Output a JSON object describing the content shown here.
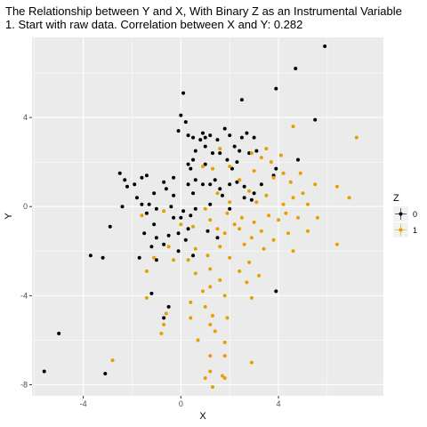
{
  "chart_data": {
    "type": "scatter",
    "title": "The Relationship between Y and X, With Binary Z as an Instrumental Variable",
    "subtitle": "1. Start with raw data. Correlation between X and Y: 0.282",
    "xlabel": "X",
    "ylabel": "Y",
    "xlim": [
      -6.1,
      8.3
    ],
    "ylim": [
      -8.5,
      7.6
    ],
    "x_ticks": [
      -4,
      0,
      4
    ],
    "y_ticks": [
      -8,
      -4,
      0,
      4
    ],
    "x_tick_labels": [
      "-4",
      "0",
      "4"
    ],
    "y_tick_labels": [
      "-8",
      "-4",
      "0",
      "4"
    ],
    "grid": true,
    "legend": {
      "title": "Z",
      "position": "right",
      "entries": [
        "0",
        "1"
      ]
    },
    "series": [
      {
        "name": "0",
        "color": "#000000",
        "points": [
          [
            5.9,
            7.2
          ],
          [
            4.7,
            6.2
          ],
          [
            3.9,
            5.3
          ],
          [
            0.1,
            5.1
          ],
          [
            2.5,
            4.8
          ],
          [
            5.5,
            3.9
          ],
          [
            0.0,
            4.1
          ],
          [
            0.2,
            3.8
          ],
          [
            -0.1,
            3.4
          ],
          [
            0.3,
            3.2
          ],
          [
            0.5,
            3.1
          ],
          [
            0.8,
            3.0
          ],
          [
            0.9,
            3.3
          ],
          [
            1.0,
            3.1
          ],
          [
            1.2,
            3.2
          ],
          [
            1.5,
            3.0
          ],
          [
            1.8,
            3.5
          ],
          [
            2.0,
            3.2
          ],
          [
            2.2,
            2.7
          ],
          [
            2.5,
            3.1
          ],
          [
            2.7,
            3.3
          ],
          [
            3.0,
            3.1
          ],
          [
            0.6,
            2.5
          ],
          [
            1.0,
            2.7
          ],
          [
            1.3,
            2.4
          ],
          [
            2.4,
            2.5
          ],
          [
            2.8,
            2.4
          ],
          [
            3.1,
            2.5
          ],
          [
            0.5,
            2.1
          ],
          [
            1.6,
            2.4
          ],
          [
            1.9,
            2.1
          ],
          [
            2.3,
            2.0
          ],
          [
            4.8,
            2.1
          ],
          [
            0.3,
            1.9
          ],
          [
            0.4,
            1.7
          ],
          [
            1.0,
            1.9
          ],
          [
            2.1,
            1.7
          ],
          [
            3.9,
            1.7
          ],
          [
            -2.5,
            1.5
          ],
          [
            -2.3,
            1.2
          ],
          [
            -1.6,
            1.3
          ],
          [
            -1.4,
            1.4
          ],
          [
            -2.2,
            0.9
          ],
          [
            -1.9,
            1.0
          ],
          [
            -0.7,
            1.1
          ],
          [
            -0.3,
            1.3
          ],
          [
            0.3,
            1.0
          ],
          [
            0.6,
            1.2
          ],
          [
            0.9,
            1.0
          ],
          [
            1.2,
            1.0
          ],
          [
            1.4,
            1.2
          ],
          [
            1.6,
            0.8
          ],
          [
            2.0,
            1.0
          ],
          [
            2.3,
            1.1
          ],
          [
            2.6,
            0.9
          ],
          [
            3.3,
            1.0
          ],
          [
            3.8,
            1.4
          ],
          [
            -1.8,
            0.4
          ],
          [
            -1.1,
            0.6
          ],
          [
            -0.6,
            0.8
          ],
          [
            -0.3,
            0.5
          ],
          [
            0.5,
            0.6
          ],
          [
            1.7,
            0.5
          ],
          [
            2.6,
            0.4
          ],
          [
            3.0,
            0.6
          ],
          [
            -2.4,
            0.0
          ],
          [
            -1.6,
            0.1
          ],
          [
            -1.3,
            0.1
          ],
          [
            -1.4,
            -0.3
          ],
          [
            -1.0,
            -0.1
          ],
          [
            -0.4,
            0.0
          ],
          [
            0.1,
            -0.2
          ],
          [
            0.6,
            -0.1
          ],
          [
            1.2,
            0.1
          ],
          [
            2.0,
            -0.1
          ],
          [
            2.9,
            0.3
          ],
          [
            -1.1,
            -0.8
          ],
          [
            -0.3,
            -0.5
          ],
          [
            0.0,
            -0.5
          ],
          [
            0.4,
            -0.4
          ],
          [
            -2.9,
            -0.9
          ],
          [
            -1.5,
            -1.2
          ],
          [
            -1.0,
            -1.4
          ],
          [
            -0.5,
            -1.3
          ],
          [
            -0.1,
            -1.2
          ],
          [
            0.3,
            -1.0
          ],
          [
            1.1,
            -1.1
          ],
          [
            1.5,
            -1.4
          ],
          [
            -1.2,
            -1.8
          ],
          [
            -0.7,
            -1.7
          ],
          [
            0.2,
            -1.5
          ],
          [
            0.5,
            -2.2
          ],
          [
            -1.7,
            -2.3
          ],
          [
            -1.0,
            -2.4
          ],
          [
            -0.1,
            -2.0
          ],
          [
            -3.7,
            -2.2
          ],
          [
            -3.2,
            -2.3
          ],
          [
            -1.2,
            -3.9
          ],
          [
            -0.5,
            -4.5
          ],
          [
            -0.7,
            -5.0
          ],
          [
            3.9,
            -3.8
          ],
          [
            -5.0,
            -5.7
          ],
          [
            -5.6,
            -7.4
          ],
          [
            -3.1,
            -7.5
          ]
        ]
      },
      {
        "name": "1",
        "color": "#e69f00",
        "points": [
          [
            4.6,
            3.6
          ],
          [
            7.2,
            3.1
          ],
          [
            3.5,
            2.6
          ],
          [
            4.1,
            2.3
          ],
          [
            3.7,
            2.0
          ],
          [
            1.6,
            2.6
          ],
          [
            2.9,
            2.4
          ],
          [
            3.3,
            2.2
          ],
          [
            0.9,
            1.8
          ],
          [
            1.3,
            1.7
          ],
          [
            2.0,
            1.8
          ],
          [
            4.2,
            1.5
          ],
          [
            3.0,
            1.6
          ],
          [
            4.9,
            1.5
          ],
          [
            2.4,
            1.2
          ],
          [
            3.8,
            1.3
          ],
          [
            4.5,
            1.1
          ],
          [
            5.5,
            1.0
          ],
          [
            6.4,
            0.9
          ],
          [
            1.5,
            0.6
          ],
          [
            2.8,
            0.7
          ],
          [
            3.5,
            0.5
          ],
          [
            4.6,
            0.4
          ],
          [
            5.0,
            0.6
          ],
          [
            6.9,
            0.4
          ],
          [
            2.0,
            0.2
          ],
          [
            3.1,
            0.2
          ],
          [
            4.2,
            0.1
          ],
          [
            5.2,
            0.1
          ],
          [
            1.0,
            -0.1
          ],
          [
            1.9,
            -0.3
          ],
          [
            2.5,
            -0.5
          ],
          [
            3.6,
            -0.4
          ],
          [
            4.3,
            -0.3
          ],
          [
            1.2,
            -0.6
          ],
          [
            2.2,
            -0.8
          ],
          [
            3.0,
            -0.7
          ],
          [
            4.0,
            -0.6
          ],
          [
            4.8,
            -0.5
          ],
          [
            5.6,
            -0.5
          ],
          [
            0.5,
            -0.9
          ],
          [
            1.5,
            -1.0
          ],
          [
            2.4,
            -1.0
          ],
          [
            3.3,
            -1.1
          ],
          [
            4.4,
            -1.2
          ],
          [
            5.2,
            -1.1
          ],
          [
            -1.6,
            -0.4
          ],
          [
            -0.7,
            -0.2
          ],
          [
            0.0,
            -0.8
          ],
          [
            1.8,
            -1.2
          ],
          [
            2.9,
            -1.4
          ],
          [
            3.8,
            -1.5
          ],
          [
            -0.5,
            -1.8
          ],
          [
            0.6,
            -1.9
          ],
          [
            1.6,
            -1.8
          ],
          [
            2.6,
            -1.7
          ],
          [
            3.4,
            -1.9
          ],
          [
            4.6,
            -2.0
          ],
          [
            6.4,
            -1.7
          ],
          [
            -1.1,
            -2.3
          ],
          [
            -0.3,
            -2.4
          ],
          [
            0.3,
            -2.4
          ],
          [
            1.1,
            -2.2
          ],
          [
            2.0,
            -2.3
          ],
          [
            2.8,
            -2.5
          ],
          [
            -1.4,
            -2.9
          ],
          [
            0.6,
            -3.0
          ],
          [
            1.2,
            -2.8
          ],
          [
            2.4,
            -2.9
          ],
          [
            3.2,
            -3.1
          ],
          [
            1.6,
            -3.3
          ],
          [
            2.7,
            -3.4
          ],
          [
            0.9,
            -3.8
          ],
          [
            1.2,
            -3.6
          ],
          [
            1.8,
            -4.0
          ],
          [
            2.9,
            -4.1
          ],
          [
            -1.4,
            -4.1
          ],
          [
            0.4,
            -4.3
          ],
          [
            1.0,
            -4.5
          ],
          [
            -0.6,
            -4.8
          ],
          [
            0.4,
            -5.0
          ],
          [
            1.3,
            -4.9
          ],
          [
            1.9,
            -5.0
          ],
          [
            -0.7,
            -5.3
          ],
          [
            1.2,
            -5.3
          ],
          [
            1.4,
            -5.6
          ],
          [
            -0.8,
            -5.7
          ],
          [
            0.7,
            -6.0
          ],
          [
            1.8,
            -6.1
          ],
          [
            -2.8,
            -6.9
          ],
          [
            1.2,
            -6.7
          ],
          [
            1.8,
            -6.7
          ],
          [
            2.9,
            -7.0
          ],
          [
            1.2,
            -7.4
          ],
          [
            1.7,
            -7.6
          ],
          [
            1.0,
            -7.7
          ],
          [
            1.8,
            -7.7
          ],
          [
            1.3,
            -8.1
          ]
        ]
      }
    ]
  }
}
